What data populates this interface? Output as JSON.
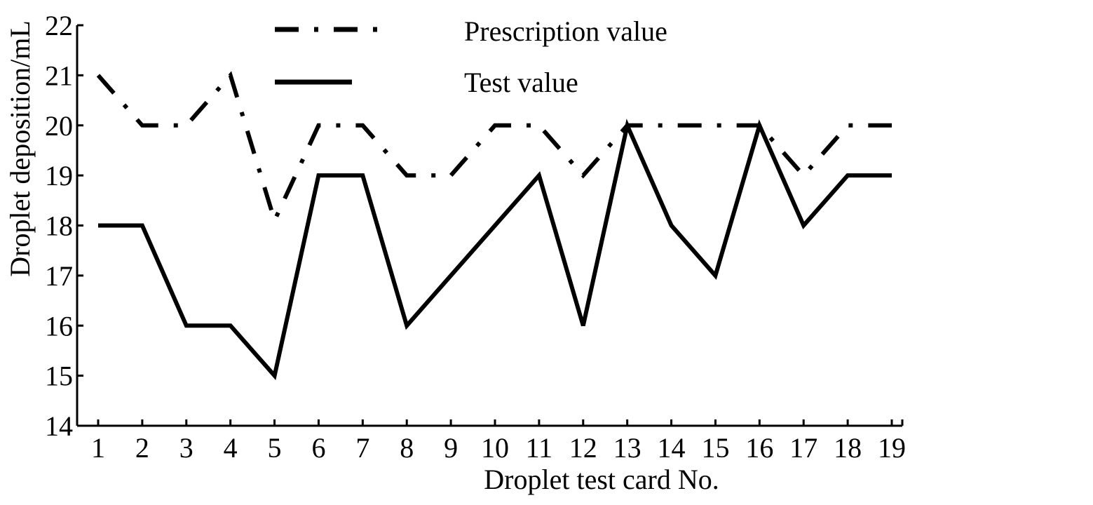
{
  "chart_data": {
    "type": "line",
    "title": "",
    "xlabel": "Droplet test card No.",
    "ylabel": "Droplet deposition/mL",
    "x": [
      1,
      2,
      3,
      4,
      5,
      6,
      7,
      8,
      9,
      10,
      11,
      12,
      13,
      14,
      15,
      16,
      17,
      18,
      19
    ],
    "xlim": [
      0.5,
      19
    ],
    "ylim": [
      14,
      22
    ],
    "yticks": [
      14,
      15,
      16,
      17,
      18,
      19,
      20,
      21,
      22
    ],
    "legend_position": "top",
    "grid": false,
    "series": [
      {
        "name": "Prescription value",
        "style": "dash-dot",
        "color": "#000000",
        "points": [
          [
            1,
            21
          ],
          [
            2,
            20
          ],
          [
            3,
            20
          ],
          [
            4,
            21
          ],
          [
            5,
            18.1
          ],
          [
            6,
            20
          ],
          [
            7,
            20
          ],
          [
            8,
            19
          ],
          [
            9,
            19
          ],
          [
            10,
            20
          ],
          [
            11,
            20
          ],
          [
            12,
            19
          ],
          [
            13,
            20
          ],
          [
            14,
            20
          ],
          [
            15,
            20
          ],
          [
            16,
            20
          ],
          [
            17,
            19
          ],
          [
            18,
            20
          ],
          [
            19,
            20
          ]
        ]
      },
      {
        "name": "Test value",
        "style": "solid",
        "color": "#000000",
        "points": [
          [
            1,
            18
          ],
          [
            2,
            18
          ],
          [
            3,
            16
          ],
          [
            4,
            16
          ],
          [
            5,
            15
          ],
          [
            6,
            19
          ],
          [
            7,
            19
          ],
          [
            8,
            16
          ],
          [
            9,
            17
          ],
          [
            10,
            18
          ],
          [
            11,
            19
          ],
          [
            12,
            16
          ],
          [
            13,
            20
          ],
          [
            14,
            18
          ],
          [
            15,
            17
          ],
          [
            16,
            20
          ],
          [
            17,
            18
          ],
          [
            18,
            19
          ],
          [
            19,
            19
          ]
        ]
      }
    ]
  }
}
